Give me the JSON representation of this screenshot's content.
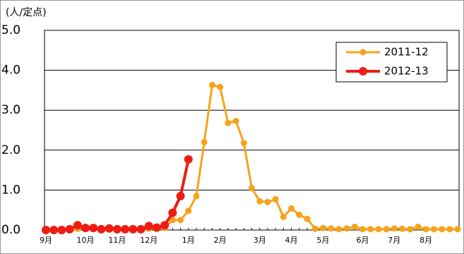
{
  "chart_data": {
    "type": "line",
    "ylabel": "(人/定点)",
    "categories": [
      "9月",
      null,
      null,
      null,
      null,
      "10月",
      null,
      null,
      null,
      "11月",
      null,
      null,
      null,
      "12月",
      null,
      null,
      null,
      null,
      "1月",
      null,
      null,
      null,
      "2月",
      null,
      null,
      null,
      null,
      "3月",
      null,
      null,
      null,
      "4月",
      null,
      null,
      null,
      "5月",
      null,
      null,
      null,
      null,
      "6月",
      null,
      null,
      null,
      "7月",
      null,
      null,
      null,
      "8月",
      null,
      null,
      null,
      null
    ],
    "series": [
      {
        "name": "2011-12",
        "color": "#f7a21b",
        "values": [
          0.02,
          0.02,
          0.02,
          0.02,
          0.03,
          0.03,
          0.02,
          0.02,
          0.02,
          0.02,
          0.02,
          0.02,
          0.02,
          0.03,
          0.04,
          0.05,
          0.25,
          0.25,
          0.48,
          0.85,
          2.2,
          3.63,
          3.58,
          2.68,
          2.73,
          2.18,
          1.05,
          0.72,
          0.7,
          0.77,
          0.33,
          0.54,
          0.38,
          0.28,
          0.03,
          0.05,
          0.04,
          0.02,
          0.04,
          0.08,
          0.02,
          0.02,
          0.02,
          0.02,
          0.04,
          0.03,
          0.02,
          0.08,
          0.02,
          0.02,
          0.02,
          0.02,
          0.02
        ]
      },
      {
        "name": "2012-13",
        "color": "#ee1c13",
        "values": [
          0,
          0,
          0,
          0.02,
          0.12,
          0.05,
          0.05,
          0.02,
          0.04,
          0.02,
          0.02,
          0.02,
          0.02,
          0.1,
          0.06,
          0.12,
          0.43,
          0.85,
          1.77,
          null,
          null,
          null,
          null,
          null,
          null,
          null,
          null,
          null,
          null,
          null,
          null,
          null,
          null,
          null,
          null,
          null,
          null,
          null,
          null,
          null,
          null,
          null,
          null,
          null,
          null,
          null,
          null,
          null,
          null,
          null,
          null,
          null,
          null
        ]
      }
    ],
    "ylim": [
      0,
      5
    ],
    "yticks": [
      {
        "value": 0,
        "label": "0.0"
      },
      {
        "value": 1,
        "label": "1.0"
      },
      {
        "value": 2,
        "label": "2.0"
      },
      {
        "value": 3,
        "label": "3.0"
      },
      {
        "value": 4,
        "label": "4.0"
      },
      {
        "value": 5,
        "label": "5.0"
      }
    ],
    "grid": true,
    "legend": "upper right"
  }
}
